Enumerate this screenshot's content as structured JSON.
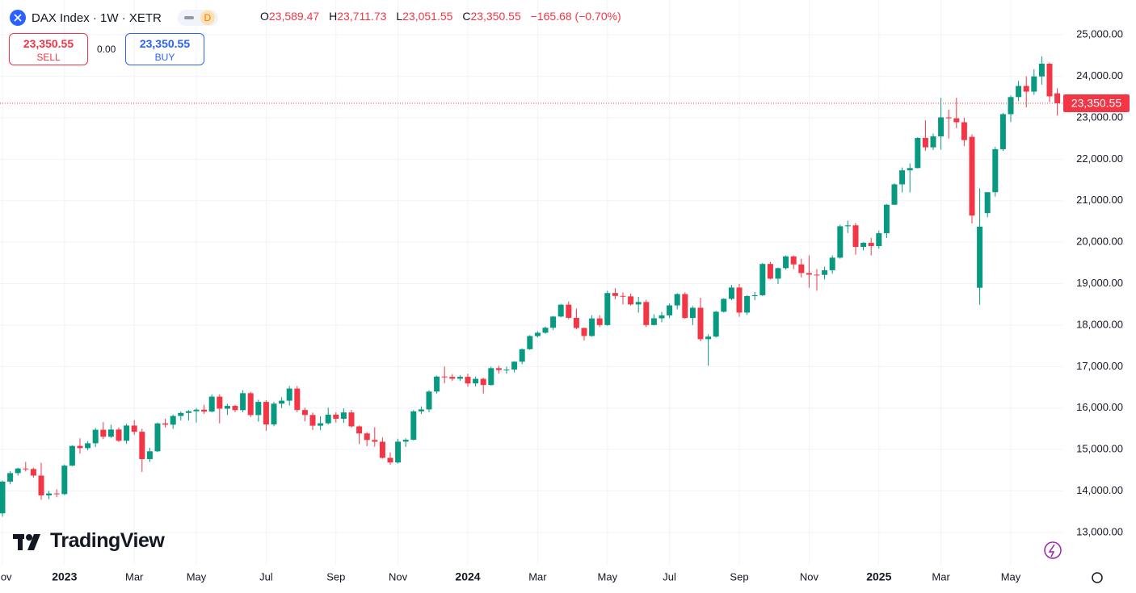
{
  "header": {
    "title": "DAX Index · 1W · XETR",
    "badge": "D",
    "ohlc": [
      [
        "O",
        "23,589.47"
      ],
      [
        "H",
        "23,711.73"
      ],
      [
        "L",
        "23,051.55"
      ],
      [
        "C",
        "23,350.55"
      ]
    ],
    "change": "−165.68 (−0.70%)",
    "sell": {
      "price": "23,350.55",
      "label": "SELL"
    },
    "spread": "0.00",
    "buy": {
      "price": "23,350.55",
      "label": "BUY"
    },
    "brand": "TradingView"
  },
  "chart_data": {
    "type": "candlestick",
    "categories": [
      "Nov",
      null,
      null,
      null,
      null,
      null,
      null,
      null,
      "2023",
      null,
      null,
      null,
      null,
      null,
      null,
      null,
      null,
      "Mar",
      null,
      null,
      null,
      null,
      null,
      null,
      null,
      "May",
      null,
      null,
      null,
      null,
      null,
      null,
      null,
      null,
      "Jul",
      null,
      null,
      null,
      null,
      null,
      null,
      null,
      null,
      "Sep",
      null,
      null,
      null,
      null,
      null,
      null,
      null,
      "Nov",
      null,
      null,
      null,
      null,
      null,
      null,
      null,
      null,
      "2024",
      null,
      null,
      null,
      null,
      null,
      null,
      null,
      null,
      "Mar",
      null,
      null,
      null,
      null,
      null,
      null,
      null,
      null,
      "May",
      null,
      null,
      null,
      null,
      null,
      null,
      null,
      "Jul",
      null,
      null,
      null,
      null,
      null,
      null,
      null,
      null,
      "Sep",
      null,
      null,
      null,
      null,
      null,
      null,
      null,
      null,
      "Nov",
      null,
      null,
      null,
      null,
      null,
      null,
      null,
      null,
      "2025",
      null,
      null,
      null,
      null,
      null,
      null,
      null,
      "Mar",
      null,
      null,
      null,
      null,
      null,
      null,
      null,
      null,
      "May",
      null,
      null,
      null,
      null,
      null,
      null
    ],
    "open": [
      13460,
      14224,
      14431,
      14541,
      14529,
      14371,
      13893,
      13940,
      13924,
      14610,
      15086,
      15033,
      15150,
      15476,
      15307,
      15482,
      15210,
      15578,
      15428,
      14768,
      14957,
      15629,
      15598,
      15808,
      15882,
      15922,
      15961,
      15914,
      16275,
      15984,
      16051,
      15950,
      16358,
      15830,
      16148,
      15603,
      16105,
      16177,
      16469,
      15952,
      15832,
      15574,
      15632,
      15840,
      15740,
      15894,
      15557,
      15387,
      15229,
      15187,
      14798,
      14687,
      15189,
      15234,
      15919,
      15967,
      16397,
      16759,
      16751,
      16706,
      16752,
      16594,
      16704,
      16555,
      16961,
      16918,
      16926,
      17117,
      17419,
      17735,
      17815,
      17936,
      18206,
      18492,
      18175,
      17930,
      17737,
      18161,
      18001,
      18773,
      18704,
      18693,
      18498,
      18557,
      18002,
      18164,
      18235,
      18475,
      18748,
      18171,
      18418,
      17661,
      17723,
      18322,
      18633,
      18906,
      18302,
      18699,
      18720,
      19474,
      19120,
      19373,
      19657,
      19464,
      19255,
      19216,
      19211,
      19323,
      19626,
      20384,
      20406,
      19885,
      19984,
      19906,
      20215,
      20903,
      21394,
      21732,
      21787,
      22513,
      22287,
      22551,
      23009,
      22987,
      22892,
      22540,
      18900,
      20700,
      21205,
      22242,
      23087,
      23499,
      23767,
      23630,
      23997,
      24304,
      23589.47
    ],
    "high": [
      14250,
      14480,
      14560,
      14700,
      14560,
      14680,
      14000,
      14040,
      14640,
      15100,
      15270,
      15200,
      15520,
      15660,
      15600,
      15530,
      15620,
      15710,
      15500,
      15040,
      15650,
      15740,
      15840,
      15920,
      15950,
      16000,
      16080,
      16330,
      16330,
      16100,
      16080,
      16430,
      16390,
      16200,
      16190,
      16150,
      16260,
      16530,
      16530,
      16010,
      15890,
      15800,
      16010,
      15900,
      15990,
      15950,
      15580,
      15420,
      15540,
      15290,
      14930,
      15260,
      15270,
      15950,
      16040,
      16430,
      16780,
      17000,
      16820,
      16790,
      16830,
      16760,
      16730,
      17000,
      17020,
      17000,
      17130,
      17440,
      17760,
      17850,
      17970,
      18220,
      18510,
      18570,
      18400,
      17940,
      18240,
      18240,
      18830,
      18890,
      18790,
      18760,
      18680,
      18610,
      18260,
      18320,
      18520,
      18770,
      18790,
      18460,
      18660,
      17780,
      18340,
      18650,
      18970,
      18990,
      18720,
      18800,
      19500,
      19520,
      19390,
      19680,
      19680,
      19600,
      19680,
      19350,
      19410,
      19680,
      20420,
      20520,
      20460,
      20000,
      20100,
      20280,
      20920,
      21420,
      21800,
      21900,
      22530,
      22940,
      22620,
      23480,
      23200,
      23480,
      23000,
      22600,
      21300,
      21200,
      22300,
      23120,
      23540,
      23890,
      24000,
      24170,
      24480,
      24330,
      23711.73
    ],
    "low": [
      13380,
      14160,
      14370,
      14470,
      14320,
      13790,
      13800,
      13850,
      13900,
      14600,
      14900,
      14980,
      15060,
      15250,
      15280,
      15180,
      15140,
      15350,
      14460,
      14700,
      14940,
      15530,
      15500,
      15700,
      15700,
      15650,
      15860,
      15900,
      15630,
      15830,
      15900,
      15900,
      15780,
      15670,
      15450,
      15560,
      16000,
      16060,
      15900,
      15680,
      15470,
      15470,
      15600,
      15650,
      15640,
      15530,
      15130,
      15080,
      15070,
      14780,
      14630,
      14660,
      15060,
      15220,
      15860,
      15900,
      16350,
      16600,
      16650,
      16650,
      16510,
      16520,
      16350,
      16540,
      16830,
      16830,
      16860,
      17060,
      17400,
      17700,
      17790,
      17880,
      18190,
      18140,
      17900,
      17630,
      17720,
      17950,
      17980,
      18620,
      18500,
      18470,
      18300,
      17950,
      17990,
      18070,
      18170,
      18380,
      18150,
      18000,
      17610,
      17020,
      17700,
      18300,
      18600,
      18200,
      18250,
      18600,
      18700,
      19100,
      18990,
      19340,
      19350,
      19150,
      18900,
      18830,
      19100,
      19240,
      19600,
      20220,
      19700,
      19800,
      19680,
      19840,
      20100,
      20900,
      21200,
      21200,
      21780,
      22200,
      22220,
      22230,
      22500,
      22750,
      22320,
      20450,
      18490,
      20600,
      21100,
      22200,
      22900,
      23400,
      23250,
      23550,
      23800,
      23380,
      23051.55
    ],
    "close": [
      14224,
      14431,
      14541,
      14529,
      14371,
      13893,
      13940,
      13924,
      14610,
      15086,
      15033,
      15150,
      15476,
      15307,
      15482,
      15210,
      15578,
      15428,
      14768,
      14957,
      15629,
      15598,
      15808,
      15882,
      15922,
      15961,
      15914,
      16275,
      15984,
      16051,
      15950,
      16358,
      15830,
      16148,
      15603,
      16105,
      16177,
      16469,
      15952,
      15832,
      15574,
      15632,
      15840,
      15740,
      15894,
      15557,
      15387,
      15229,
      15187,
      14798,
      14687,
      15189,
      15234,
      15919,
      15967,
      16397,
      16759,
      16751,
      16706,
      16752,
      16594,
      16704,
      16555,
      16961,
      16918,
      16926,
      17117,
      17419,
      17735,
      17815,
      17936,
      18206,
      18492,
      18175,
      17930,
      17737,
      18161,
      18001,
      18773,
      18704,
      18693,
      18498,
      18557,
      18002,
      18164,
      18235,
      18475,
      18748,
      18171,
      18418,
      17661,
      17723,
      18322,
      18633,
      18906,
      18302,
      18699,
      18720,
      19474,
      19120,
      19373,
      19657,
      19464,
      19255,
      19216,
      19211,
      19323,
      19626,
      20384,
      20406,
      19885,
      19984,
      19906,
      20215,
      20903,
      21394,
      21732,
      21787,
      22513,
      22287,
      22551,
      23009,
      22987,
      22892,
      22461,
      20642,
      20374,
      21205,
      22242,
      23087,
      23499,
      23767,
      23630,
      23997,
      24304,
      23516,
      23350.55
    ],
    "up_color": "#089981",
    "down_color": "#f23645",
    "ylim": [
      12220,
      25840
    ],
    "yticks": [
      {
        "value": 13000,
        "label": "13,000.00"
      },
      {
        "value": 14000,
        "label": "14,000.00"
      },
      {
        "value": 15000,
        "label": "15,000.00"
      },
      {
        "value": 16000,
        "label": "16,000.00"
      },
      {
        "value": 17000,
        "label": "17,000.00"
      },
      {
        "value": 18000,
        "label": "18,000.00"
      },
      {
        "value": 19000,
        "label": "19,000.00"
      },
      {
        "value": 20000,
        "label": "20,000.00"
      },
      {
        "value": 21000,
        "label": "21,000.00"
      },
      {
        "value": 22000,
        "label": "22,000.00"
      },
      {
        "value": 23000,
        "label": "23,000.00"
      },
      {
        "value": 24000,
        "label": "24,000.00"
      },
      {
        "value": 25000,
        "label": "25,000.00"
      }
    ],
    "last_price": {
      "value": 23350.55,
      "label": "23,350.55"
    },
    "grid": true
  }
}
